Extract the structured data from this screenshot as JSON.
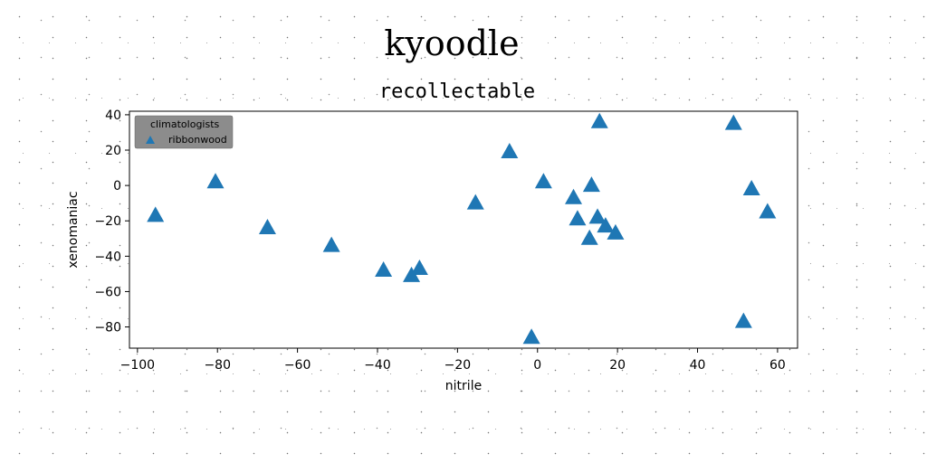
{
  "chart_data": {
    "type": "scatter",
    "suptitle": "kyoodle",
    "title": "recollectable",
    "xlabel": "nitrile",
    "ylabel": "xenomaniac",
    "xlim": [
      -102,
      65
    ],
    "ylim": [
      -92,
      42
    ],
    "xticks": [
      -100,
      -80,
      -60,
      -40,
      -20,
      0,
      20,
      40,
      60
    ],
    "yticks": [
      40,
      20,
      0,
      -20,
      -40,
      -60,
      -80
    ],
    "grid": false,
    "legend": {
      "title": "climatologists",
      "placement": "top-left"
    },
    "series": [
      {
        "name": "ribbonwood",
        "color": "#1f77b4",
        "marker": "triangle",
        "x": [
          -95.5,
          -80.5,
          -67.5,
          -51.5,
          -38.5,
          -31.5,
          -29.5,
          -15.5,
          -7,
          -1.5,
          1.5,
          9,
          10,
          13,
          13.5,
          15,
          15.5,
          17,
          19.5,
          49,
          51.5,
          53.5,
          57.5
        ],
        "y": [
          -17,
          2,
          -24,
          -34,
          -48,
          -51,
          -47,
          -10,
          19,
          -86,
          2,
          -7,
          -19,
          -30,
          0,
          -18,
          36,
          -23,
          -27,
          35,
          -77,
          -2,
          -15
        ]
      }
    ]
  }
}
